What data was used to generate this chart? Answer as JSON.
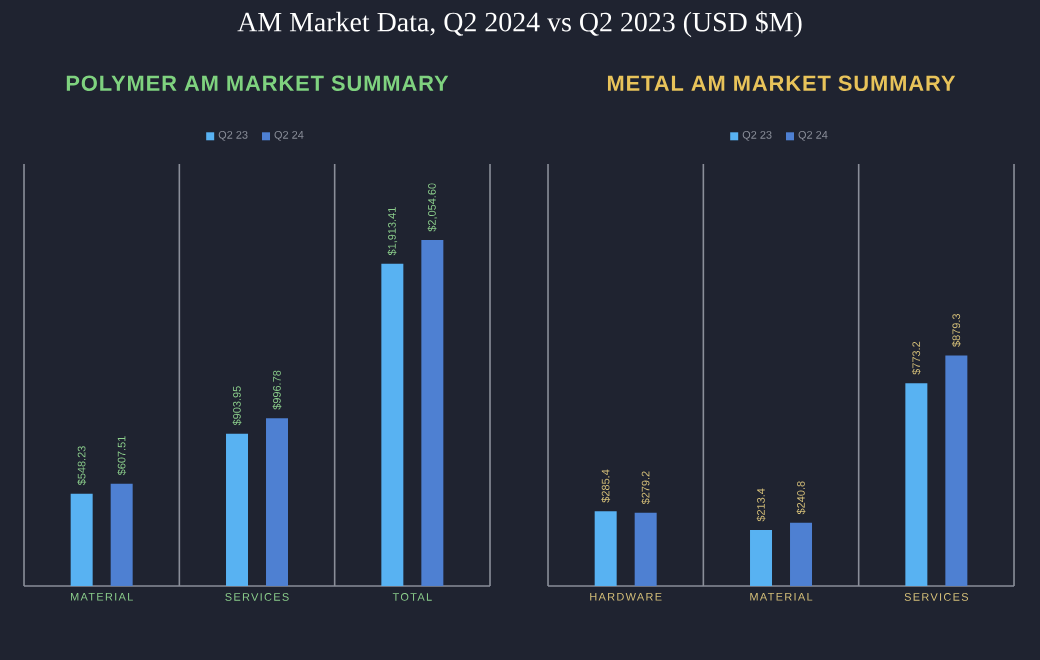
{
  "chart_data": [
    {
      "type": "other",
      "title": "AM Market Data, Q2 2024 vs Q2 2023 (USD $M)"
    },
    {
      "type": "bar",
      "title": "POLYMER AM MARKET SUMMARY",
      "categories": [
        "MATERIAL",
        "SERVICES",
        "TOTAL"
      ],
      "legend": "top",
      "grid": "x",
      "series": [
        {
          "name": "Q2 23",
          "color": "#58b2f2",
          "values": [
            548.23,
            903.95,
            1913.41
          ],
          "value_labels": [
            "$548.23",
            "$903.95",
            "$1,913.41"
          ]
        },
        {
          "name": "Q2 24",
          "color": "#4e80d2",
          "values": [
            607.51,
            996.78,
            2054.6
          ],
          "value_labels": [
            "$607.51",
            "$996.78",
            "$2,054.60"
          ]
        }
      ]
    },
    {
      "type": "bar",
      "title": "METAL AM MARKET SUMMARY",
      "categories": [
        "HARDWARE",
        "MATERIAL",
        "SERVICES"
      ],
      "legend": "top",
      "grid": "x",
      "series": [
        {
          "name": "Q2 23",
          "color": "#58b2f2",
          "values": [
            285.4,
            213.4,
            773.2
          ],
          "value_labels": [
            "$285.4",
            "$213.4",
            "$773.2"
          ]
        },
        {
          "name": "Q2 24",
          "color": "#4e80d2",
          "values": [
            279.2,
            240.8,
            879.3
          ],
          "value_labels": [
            "$279.2",
            "$240.8",
            "$879.3"
          ]
        }
      ]
    }
  ]
}
